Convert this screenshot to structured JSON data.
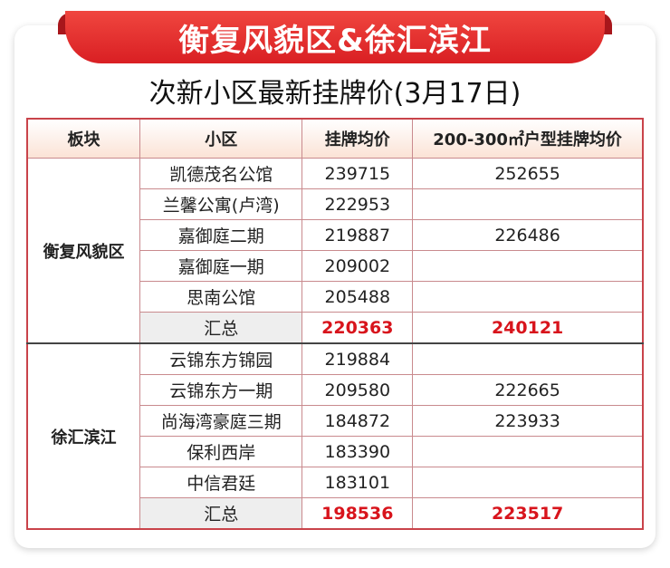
{
  "banner": {
    "title": "衡复风貌区&徐汇滨江"
  },
  "subtitle": "次新小区最新挂牌价(3月17日)",
  "colors": {
    "accent": "#d91f23",
    "summary_text": "#d8141c"
  },
  "table": {
    "headers": [
      "板块",
      "小区",
      "挂牌均价",
      "200-300㎡户型挂牌均价"
    ],
    "groups": [
      {
        "block": "衡复风貌区",
        "rows": [
          {
            "name": "凯德茂名公馆",
            "avg": "239715",
            "avg_200_300": "252655"
          },
          {
            "name": "兰馨公寓(卢湾)",
            "avg": "222953",
            "avg_200_300": ""
          },
          {
            "name": "嘉御庭二期",
            "avg": "219887",
            "avg_200_300": "226486"
          },
          {
            "name": "嘉御庭一期",
            "avg": "209002",
            "avg_200_300": ""
          },
          {
            "name": "思南公馆",
            "avg": "205488",
            "avg_200_300": ""
          }
        ],
        "summary": {
          "label": "汇总",
          "avg": "220363",
          "avg_200_300": "240121"
        }
      },
      {
        "block": "徐汇滨江",
        "rows": [
          {
            "name": "云锦东方锦园",
            "avg": "219884",
            "avg_200_300": ""
          },
          {
            "name": "云锦东方一期",
            "avg": "209580",
            "avg_200_300": "222665"
          },
          {
            "name": "尚海湾豪庭三期",
            "avg": "184872",
            "avg_200_300": "223933"
          },
          {
            "name": "保利西岸",
            "avg": "183390",
            "avg_200_300": ""
          },
          {
            "name": "中信君廷",
            "avg": "183101",
            "avg_200_300": ""
          }
        ],
        "summary": {
          "label": "汇总",
          "avg": "198536",
          "avg_200_300": "223517"
        }
      }
    ]
  }
}
